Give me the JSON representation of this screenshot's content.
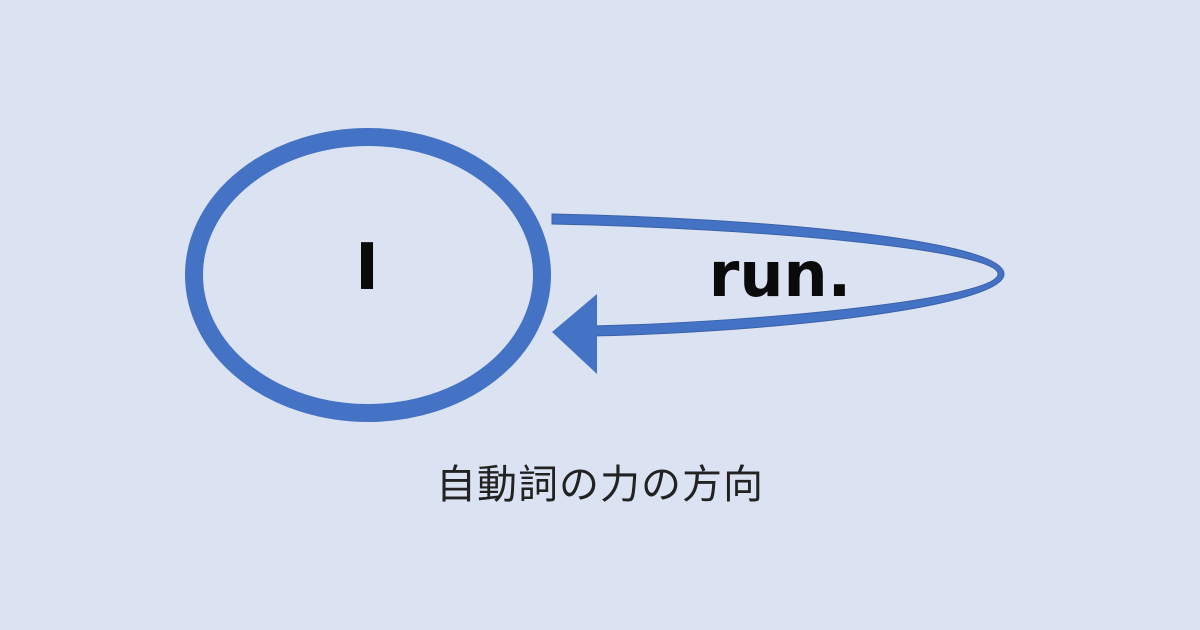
{
  "diagram": {
    "subject": "I",
    "verb": "run.",
    "caption": "自動詞の力の方向"
  },
  "colors": {
    "background": "#dbe3f3",
    "shape": "#4472c4",
    "shape_dark": "#3a62a8",
    "text": "#0a0a0a"
  },
  "icons": {
    "subject_shape": "ellipse-outline",
    "force_arrow": "curved-return-arrow-icon"
  }
}
